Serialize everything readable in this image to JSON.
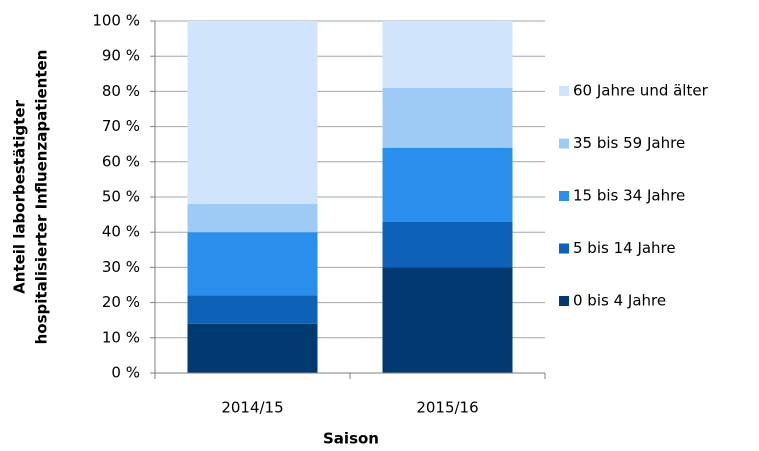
{
  "chart_data": {
    "type": "stacked_bar",
    "ylabel": [
      "Anteil laborbestätigter",
      "hospitalisierter Influenzapatienten"
    ],
    "xlabel": "Saison",
    "categories": [
      "2014/15",
      "2015/16"
    ],
    "series": [
      {
        "name": "0 bis 4 Jahre",
        "color": "#003a70",
        "values": [
          14,
          30
        ]
      },
      {
        "name": "5 bis 14 Jahre",
        "color": "#0d62b8",
        "values": [
          8,
          13
        ]
      },
      {
        "name": "15 bis 34 Jahre",
        "color": "#2a8eec",
        "values": [
          18,
          21
        ]
      },
      {
        "name": "35 bis 59 Jahre",
        "color": "#9dcbf6",
        "values": [
          8,
          17
        ]
      },
      {
        "name": "60 Jahre und älter",
        "color": "#d0e5fb",
        "values": [
          52,
          19
        ]
      }
    ],
    "ylim": [
      0,
      100
    ],
    "yticks": [
      {
        "value": 0,
        "label": "0 %"
      },
      {
        "value": 10,
        "label": "10 %"
      },
      {
        "value": 20,
        "label": "20 %"
      },
      {
        "value": 30,
        "label": "30 %"
      },
      {
        "value": 40,
        "label": "40 %"
      },
      {
        "value": 50,
        "label": "50 %"
      },
      {
        "value": 60,
        "label": "60 %"
      },
      {
        "value": 70,
        "label": "70 %"
      },
      {
        "value": 80,
        "label": "80 %"
      },
      {
        "value": 90,
        "label": "90 %"
      },
      {
        "value": 100,
        "label": "100 %"
      }
    ],
    "grid": true
  }
}
